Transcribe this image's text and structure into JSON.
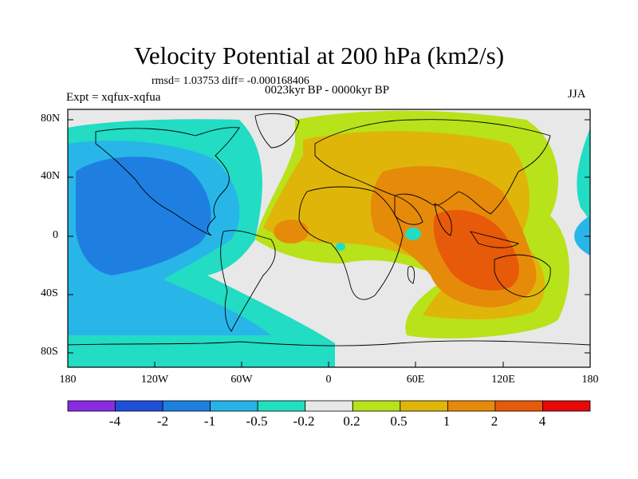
{
  "title": "Velocity Potential at 200 hPa (km2/s)",
  "stats": "rmsd= 1.03753 diff= -0.000168406",
  "subtitle": "0023kyr BP - 0000kyr BP",
  "left_label": "Expt = xqfux-xqfua",
  "right_label": "JJA",
  "axes": {
    "y_ticks": [
      "80N",
      "40N",
      "0",
      "40S",
      "80S"
    ],
    "x_ticks": [
      "180",
      "120W",
      "60W",
      "0",
      "60E",
      "120E",
      "180"
    ]
  },
  "colorbar": {
    "labels": [
      "-4",
      "-2",
      "-1",
      "-0.5",
      "-0.2",
      "0.2",
      "0.5",
      "1",
      "2",
      "4"
    ],
    "colors": [
      "#8a2be2",
      "#1f4fd8",
      "#1e7fe0",
      "#27b3e6",
      "#20e0c0",
      "#e8e8e8",
      "#b8e21a",
      "#e0b50a",
      "#e68a0a",
      "#e65a0a",
      "#e60a0a"
    ]
  },
  "map_colors": {
    "neutral": "#e8e8e8",
    "c_m2": "#1f7fe0",
    "c_m1": "#28b6e8",
    "c_m05": "#22dcc4",
    "c_p05": "#b8e21a",
    "c_p1": "#e0b50a",
    "c_p2": "#e68a0a",
    "c_p4": "#e65a0a"
  }
}
